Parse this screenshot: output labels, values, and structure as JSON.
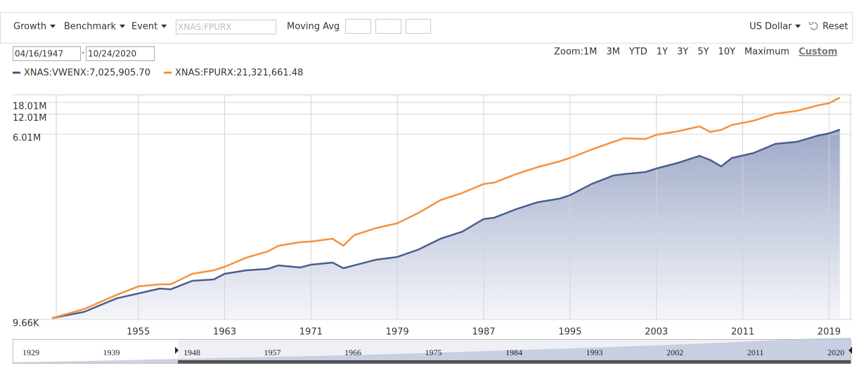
{
  "toolbar": {
    "menus": [
      "Growth",
      "Benchmark",
      "Event"
    ],
    "symbol_placeholder": "XNAS:FPURX",
    "moving_avg": "Moving Avg",
    "currency": "US Dollar",
    "reset": "Reset"
  },
  "date_range": {
    "start": "04/16/1947",
    "separator": "-",
    "end": "10/24/2020"
  },
  "zoom": {
    "label": "Zoom:",
    "options": [
      "1M",
      "3M",
      "YTD",
      "1Y",
      "3Y",
      "5Y",
      "10Y",
      "Maximum",
      "Custom"
    ],
    "active_index": 8
  },
  "chart_data": {
    "type": "line",
    "log_scale": true,
    "grid": true,
    "x": [
      1947,
      1950,
      1953,
      1955,
      1957,
      1958,
      1960,
      1962,
      1963,
      1965,
      1967,
      1968,
      1970,
      1971,
      1973,
      1974,
      1975,
      1977,
      1979,
      1981,
      1983,
      1985,
      1987,
      1988,
      1990,
      1992,
      1994,
      1995,
      1997,
      1999,
      2000,
      2002,
      2003,
      2005,
      2007,
      2008,
      2009,
      2010,
      2012,
      2014,
      2016,
      2018,
      2019,
      2020
    ],
    "series": [
      {
        "name": "XNAS:VWENX:7,025,905.70",
        "color": "#4a5e8e",
        "area": true,
        "values": [
          10100,
          12600,
          20100,
          23800,
          28200,
          27500,
          36900,
          38700,
          47100,
          53200,
          55800,
          63100,
          58600,
          64600,
          69500,
          57200,
          63100,
          76600,
          84500,
          110000,
          159000,
          203000,
          315000,
          331000,
          443000,
          565000,
          638000,
          721000,
          1063000,
          1426000,
          1497000,
          1611000,
          1820000,
          2212000,
          2822000,
          2439000,
          1959000,
          2624000,
          3110000,
          4270000,
          4590000,
          5720000,
          6150000,
          7030000
        ]
      },
      {
        "name": "XNAS:FPURX:21,321,661.48",
        "color": "#f5913e",
        "area": false,
        "values": [
          10100,
          13900,
          22700,
          30400,
          32700,
          32700,
          47100,
          53200,
          60100,
          82400,
          102600,
          124700,
          140900,
          144400,
          159000,
          124700,
          179900,
          229500,
          272100,
          392000,
          608000,
          776000,
          1063000,
          1118000,
          1497000,
          1911000,
          2322000,
          2624000,
          3515000,
          4590000,
          5190000,
          5068000,
          5860000,
          6620000,
          7852000,
          6460000,
          6955000,
          8241000,
          9550000,
          12180000,
          13430000,
          16330000,
          17540000,
          21320000
        ]
      }
    ],
    "xlim": [
      1947.4,
      2021
    ],
    "xticks": [
      1955,
      1963,
      1971,
      1979,
      1987,
      1995,
      2003,
      2011,
      2019
    ],
    "ylim": [
      9660,
      23500000
    ],
    "yticks": [
      {
        "value": 9660,
        "label": "9.66K"
      },
      {
        "value": 6010000,
        "label": "6.01M"
      },
      {
        "value": 12010000,
        "label": "12.01M"
      },
      {
        "value": 18010000,
        "label": "18.01M"
      }
    ]
  },
  "navigator": {
    "labels": [
      "1929",
      "1939",
      "1948",
      "1957",
      "1966",
      "1975",
      "1984",
      "1993",
      "2002",
      "2011",
      "2020"
    ]
  }
}
